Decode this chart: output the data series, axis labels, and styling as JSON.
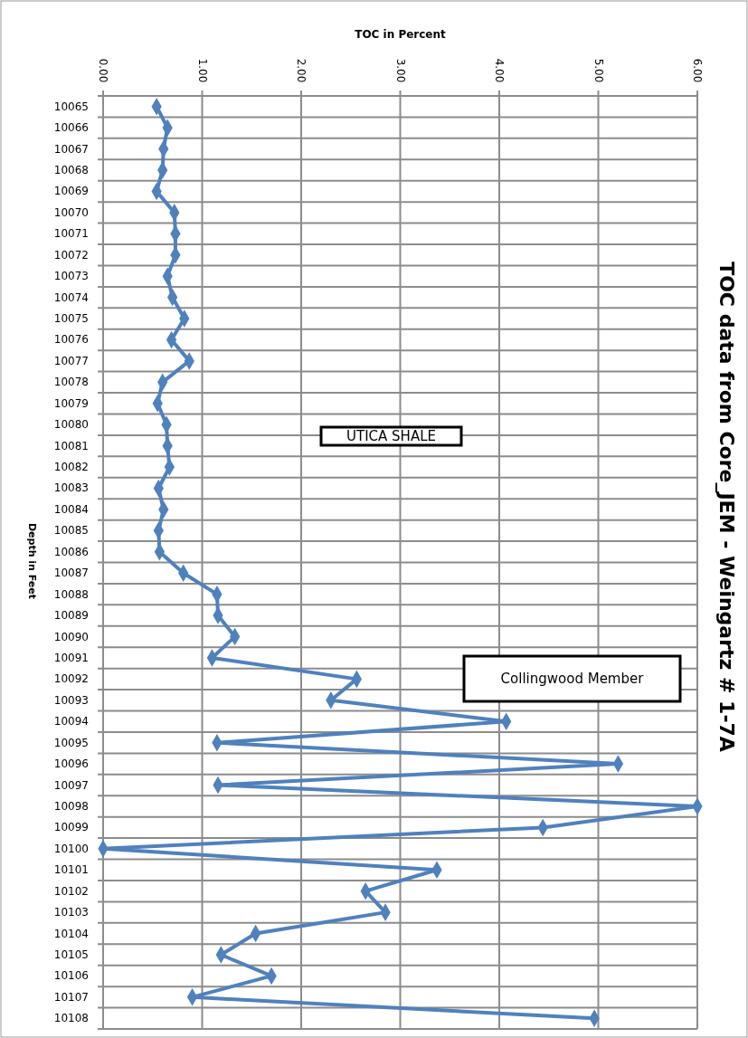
{
  "chart_data": {
    "type": "line",
    "orientation": "horizontal",
    "title": "TOC data from Core_JEM - Weingartz # 1-7A",
    "xlabel": "TOC in Percent",
    "ylabel": "Depth in Feet",
    "annotations": [
      "UTICA SHALE",
      "Collingwood Member"
    ],
    "categories": [
      "10065",
      "10066",
      "10067",
      "10068",
      "10069",
      "10070",
      "10071",
      "10072",
      "10073",
      "10074",
      "10075",
      "10076",
      "10077",
      "10078",
      "10079",
      "10080",
      "10081",
      "10082",
      "10083",
      "10084",
      "10085",
      "10086",
      "10087",
      "10088",
      "10089",
      "10090",
      "10091",
      "10092",
      "10093",
      "10094",
      "10095",
      "10096",
      "10097",
      "10098",
      "10099",
      "10100",
      "10101",
      "10102",
      "10103",
      "10104",
      "10105",
      "10106",
      "10107",
      "10108"
    ],
    "series": [
      {
        "color": "#4f81bd",
        "values": [
          0.54,
          0.65,
          0.61,
          0.6,
          0.54,
          0.72,
          0.73,
          0.73,
          0.65,
          0.7,
          0.82,
          0.69,
          0.87,
          0.6,
          0.55,
          0.64,
          0.65,
          0.67,
          0.56,
          0.61,
          0.56,
          0.57,
          0.81,
          1.15,
          1.16,
          1.33,
          1.1,
          2.56,
          2.3,
          4.07,
          1.15,
          5.2,
          1.16,
          6.0,
          4.44,
          0.0,
          3.37,
          2.65,
          2.85,
          1.54,
          1.19,
          1.7,
          0.9,
          4.96
        ]
      }
    ],
    "xlim": [
      0,
      6
    ],
    "xticks": [
      {
        "value": 0,
        "label": "0.00"
      },
      {
        "value": 1,
        "label": "1.00"
      },
      {
        "value": 2,
        "label": "2.00"
      },
      {
        "value": 3,
        "label": "3.00"
      },
      {
        "value": 4,
        "label": "4.00"
      },
      {
        "value": 5,
        "label": "5.00"
      },
      {
        "value": 6,
        "label": "6.00"
      }
    ],
    "grid": true,
    "marker": "diamond",
    "line_style": "solid"
  }
}
